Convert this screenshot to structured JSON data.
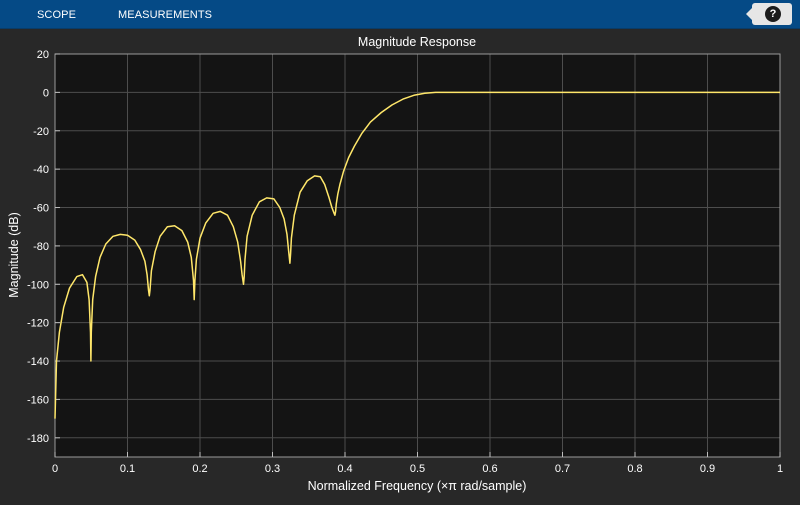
{
  "toolstrip": {
    "tabs": [
      {
        "label": "SCOPE"
      },
      {
        "label": "MEASUREMENTS"
      }
    ],
    "help_label": "?",
    "collapse_icon": "triangle-left-icon",
    "help_icon": "help-icon"
  },
  "colors": {
    "toolstrip_bg": "#054a86",
    "figure_bg": "#282828",
    "axes_bg": "#141414",
    "grid": "#4d4d4d",
    "line": "#ffe76a",
    "text": "#ffffff"
  },
  "chart_data": {
    "type": "line",
    "title": "Magnitude Response",
    "xlabel": "Normalized Frequency (×π rad/sample)",
    "ylabel": "Magnitude (dB)",
    "xlim": [
      0,
      1
    ],
    "ylim": [
      -190,
      20
    ],
    "xticks": [
      0,
      0.1,
      0.2,
      0.3,
      0.4,
      0.5,
      0.6,
      0.7,
      0.8,
      0.9,
      1
    ],
    "xtick_labels": [
      "0",
      "0.1",
      "0.2",
      "0.3",
      "0.4",
      "0.5",
      "0.6",
      "0.7",
      "0.8",
      "0.9",
      "1"
    ],
    "yticks": [
      20,
      0,
      -20,
      -40,
      -60,
      -80,
      -100,
      -120,
      -140,
      -160,
      -180
    ],
    "ytick_labels": [
      "20",
      "0",
      "-20",
      "-40",
      "-60",
      "-80",
      "-100",
      "-120",
      "-140",
      "-160",
      "-180"
    ],
    "grid": true,
    "series": [
      {
        "color": "#ffe76a",
        "x": [
          0.0,
          0.002,
          0.006,
          0.012,
          0.02,
          0.03,
          0.038,
          0.044,
          0.047,
          0.049,
          0.0495,
          0.05,
          0.052,
          0.056,
          0.062,
          0.07,
          0.08,
          0.09,
          0.1,
          0.11,
          0.118,
          0.124,
          0.127,
          0.129,
          0.13,
          0.131,
          0.133,
          0.138,
          0.145,
          0.155,
          0.165,
          0.175,
          0.183,
          0.188,
          0.191,
          0.192,
          0.193,
          0.195,
          0.2,
          0.208,
          0.218,
          0.228,
          0.238,
          0.246,
          0.252,
          0.256,
          0.258,
          0.26,
          0.261,
          0.262,
          0.265,
          0.272,
          0.282,
          0.292,
          0.302,
          0.31,
          0.316,
          0.32,
          0.322,
          0.324,
          0.325,
          0.326,
          0.33,
          0.338,
          0.348,
          0.358,
          0.366,
          0.372,
          0.378,
          0.382,
          0.385,
          0.386,
          0.387,
          0.388,
          0.39,
          0.393,
          0.398,
          0.405,
          0.413,
          0.423,
          0.435,
          0.45,
          0.465,
          0.48,
          0.495,
          0.51,
          0.525,
          0.54,
          0.56,
          0.58,
          0.6,
          0.62,
          0.64,
          0.66,
          0.7,
          0.8,
          0.9,
          1.0
        ],
        "y": [
          -170,
          -140,
          -125,
          -112,
          -102,
          -96,
          -95,
          -99,
          -108,
          -125,
          -140,
          -125,
          -108,
          -96,
          -86,
          -79,
          -75,
          -74,
          -74.5,
          -77,
          -82,
          -88,
          -95,
          -103,
          -106,
          -103,
          -93,
          -83,
          -75,
          -70,
          -69.5,
          -72,
          -78,
          -86,
          -98,
          -108,
          -98,
          -87,
          -76,
          -68,
          -63,
          -62,
          -64,
          -70,
          -78,
          -88,
          -95,
          -100,
          -96,
          -87,
          -75,
          -64,
          -57,
          -55,
          -55.5,
          -60,
          -66,
          -74,
          -82,
          -89,
          -84,
          -76,
          -64,
          -52,
          -46,
          -43.5,
          -44,
          -48,
          -55,
          -60,
          -63,
          -64,
          -62,
          -58,
          -53,
          -48,
          -41,
          -34,
          -28,
          -21.5,
          -15.5,
          -10.5,
          -6.5,
          -3.5,
          -1.5,
          -0.5,
          0,
          0,
          0,
          0,
          0,
          0,
          0,
          0,
          0,
          0,
          0,
          0
        ]
      }
    ]
  }
}
